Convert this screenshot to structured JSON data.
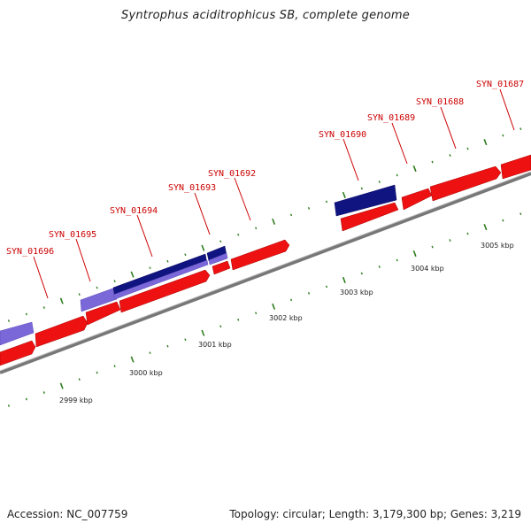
{
  "title": "Syntrophus aciditrophicus SB, complete genome",
  "footer": {
    "accession": "Accession: NC_007759",
    "summary": "Topology: circular; Length: 3,179,300 bp; Genes: 3,219"
  },
  "gene_labels": [
    "SYN_01696",
    "SYN_01695",
    "SYN_01694",
    "SYN_01693",
    "SYN_01692",
    "SYN_01690",
    "SYN_01689",
    "SYN_01688",
    "SYN_01687"
  ],
  "kbp_labels": [
    "2999 kbp",
    "3000 kbp",
    "3001 kbp",
    "3002 kbp",
    "3003 kbp",
    "3004 kbp",
    "3005 kbp"
  ],
  "colors": {
    "forward_gene": "#ee1111",
    "reverse_gene_light": "#7b68d8",
    "reverse_gene_dark": "#101480",
    "backbone": "#888888",
    "tick_major": "#2e7d1e",
    "tick_minor": "#3a9a2a",
    "label": "#cc0000"
  }
}
